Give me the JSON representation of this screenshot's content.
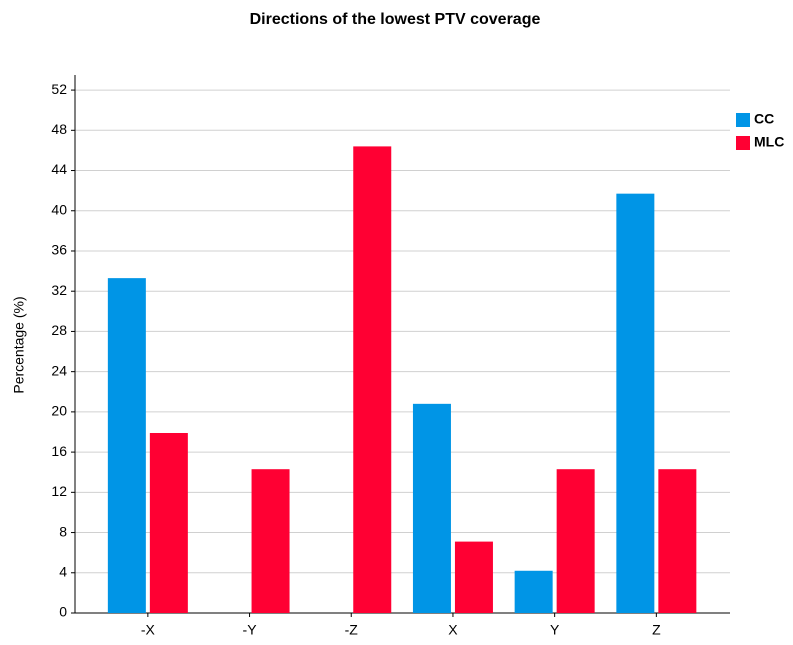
{
  "chart_data": {
    "type": "bar",
    "title": "Directions of the lowest PTV coverage",
    "y_label": "Percentage (%)",
    "categories": [
      "-X",
      "-Y",
      "-Z",
      "X",
      "Y",
      "Z"
    ],
    "series": [
      {
        "name": "CC",
        "color": "#0095e6",
        "values": [
          33.3,
          0,
          0,
          20.8,
          4.2,
          41.7
        ]
      },
      {
        "name": "MLC",
        "color": "#ff0033",
        "values": [
          17.9,
          14.3,
          46.4,
          7.1,
          14.3,
          14.3
        ]
      }
    ],
    "ylim": [
      0,
      53.5
    ],
    "yticks": [
      0,
      4,
      8,
      12,
      16,
      20,
      24,
      28,
      32,
      36,
      40,
      44,
      48,
      52
    ],
    "grid": true,
    "legend": "top-right"
  }
}
